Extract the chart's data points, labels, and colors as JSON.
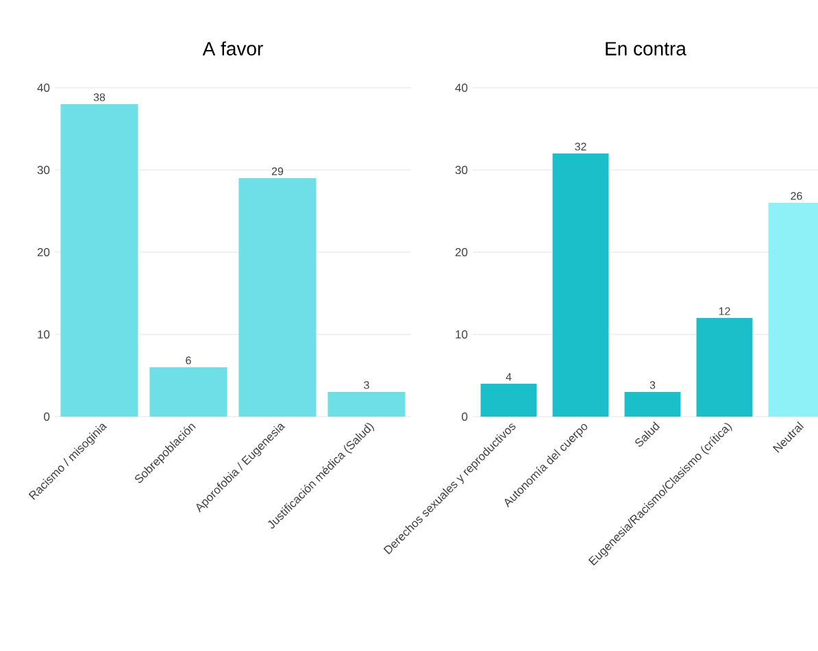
{
  "chart_data": [
    {
      "type": "bar",
      "title": "A favor",
      "categories": [
        "Racismo / misoginia",
        "Sobrepoblación",
        "Aporofobia / Eugenesia",
        "Justificación médica (Salud)"
      ],
      "values": [
        38,
        6,
        29,
        3
      ],
      "color": "#6fdfe7",
      "ylim": [
        0,
        40
      ],
      "yticks": [
        0,
        10,
        20,
        30,
        40
      ],
      "grid": "y",
      "data_labels": true
    },
    {
      "type": "bar",
      "title": "En contra",
      "categories": [
        "Derechos sexuales y reproductivos",
        "Autonomía del cuerpo",
        "Salud",
        "Eugenesia/Racismo/Clasismo (crítica)",
        "Neutral"
      ],
      "values": [
        4,
        32,
        3,
        12,
        26
      ],
      "colors": [
        "#1bbfc9",
        "#1bbfc9",
        "#1bbfc9",
        "#1bbfc9",
        "#8ef1f7"
      ],
      "ylim": [
        0,
        40
      ],
      "yticks": [
        0,
        10,
        20,
        30,
        40
      ],
      "grid": "y",
      "data_labels": true
    }
  ]
}
